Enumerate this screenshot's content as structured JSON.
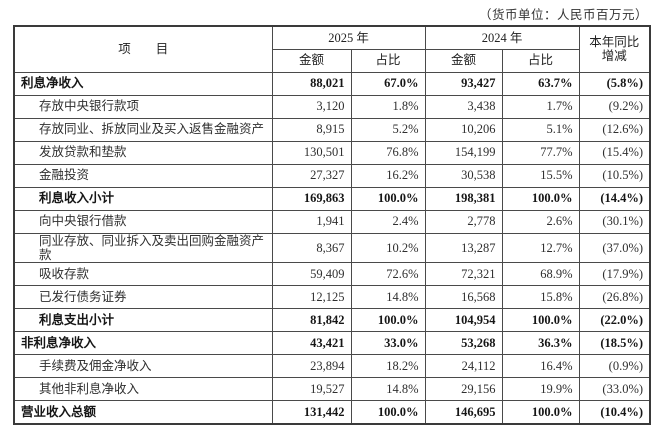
{
  "unit_note": "（货币单位：人民币百万元）",
  "table": {
    "header": {
      "item": "项　　目",
      "year_2025": "2025 年",
      "year_2024": "2024 年",
      "yoy_line1": "本年同比",
      "yoy_line2": "增减",
      "amount": "金额",
      "pct": "占比"
    },
    "rows": [
      {
        "label": "利息净收入",
        "indent": false,
        "bold": true,
        "a2025": "88,021",
        "p2025": "67.0%",
        "a2024": "93,427",
        "p2024": "63.7%",
        "yoy": "(5.8%)"
      },
      {
        "label": "存放中央银行款项",
        "indent": true,
        "bold": false,
        "a2025": "3,120",
        "p2025": "1.8%",
        "a2024": "3,438",
        "p2024": "1.7%",
        "yoy": "(9.2%)"
      },
      {
        "label": "存放同业、拆放同业及买入返售金融资产",
        "indent": true,
        "bold": false,
        "a2025": "8,915",
        "p2025": "5.2%",
        "a2024": "10,206",
        "p2024": "5.1%",
        "yoy": "(12.6%)"
      },
      {
        "label": "发放贷款和垫款",
        "indent": true,
        "bold": false,
        "a2025": "130,501",
        "p2025": "76.8%",
        "a2024": "154,199",
        "p2024": "77.7%",
        "yoy": "(15.4%)"
      },
      {
        "label": "金融投资",
        "indent": true,
        "bold": false,
        "a2025": "27,327",
        "p2025": "16.2%",
        "a2024": "30,538",
        "p2024": "15.5%",
        "yoy": "(10.5%)"
      },
      {
        "label": "利息收入小计",
        "indent": true,
        "bold": true,
        "a2025": "169,863",
        "p2025": "100.0%",
        "a2024": "198,381",
        "p2024": "100.0%",
        "yoy": "(14.4%)"
      },
      {
        "label": "向中央银行借款",
        "indent": true,
        "bold": false,
        "a2025": "1,941",
        "p2025": "2.4%",
        "a2024": "2,778",
        "p2024": "2.6%",
        "yoy": "(30.1%)"
      },
      {
        "label": "同业存放、同业拆入及卖出回购金融资产款",
        "indent": true,
        "bold": false,
        "a2025": "8,367",
        "p2025": "10.2%",
        "a2024": "13,287",
        "p2024": "12.7%",
        "yoy": "(37.0%)"
      },
      {
        "label": "吸收存款",
        "indent": true,
        "bold": false,
        "a2025": "59,409",
        "p2025": "72.6%",
        "a2024": "72,321",
        "p2024": "68.9%",
        "yoy": "(17.9%)"
      },
      {
        "label": "已发行债务证券",
        "indent": true,
        "bold": false,
        "a2025": "12,125",
        "p2025": "14.8%",
        "a2024": "16,568",
        "p2024": "15.8%",
        "yoy": "(26.8%)"
      },
      {
        "label": "利息支出小计",
        "indent": true,
        "bold": true,
        "a2025": "81,842",
        "p2025": "100.0%",
        "a2024": "104,954",
        "p2024": "100.0%",
        "yoy": "(22.0%)"
      },
      {
        "label": "非利息净收入",
        "indent": false,
        "bold": true,
        "a2025": "43,421",
        "p2025": "33.0%",
        "a2024": "53,268",
        "p2024": "36.3%",
        "yoy": "(18.5%)"
      },
      {
        "label": "手续费及佣金净收入",
        "indent": true,
        "bold": false,
        "a2025": "23,894",
        "p2025": "18.2%",
        "a2024": "24,112",
        "p2024": "16.4%",
        "yoy": "(0.9%)"
      },
      {
        "label": "其他非利息净收入",
        "indent": true,
        "bold": false,
        "a2025": "19,527",
        "p2025": "14.8%",
        "a2024": "29,156",
        "p2024": "19.9%",
        "yoy": "(33.0%)"
      },
      {
        "label": "营业收入总额",
        "indent": false,
        "bold": true,
        "a2025": "131,442",
        "p2025": "100.0%",
        "a2024": "146,695",
        "p2024": "100.0%",
        "yoy": "(10.4%)"
      }
    ]
  }
}
